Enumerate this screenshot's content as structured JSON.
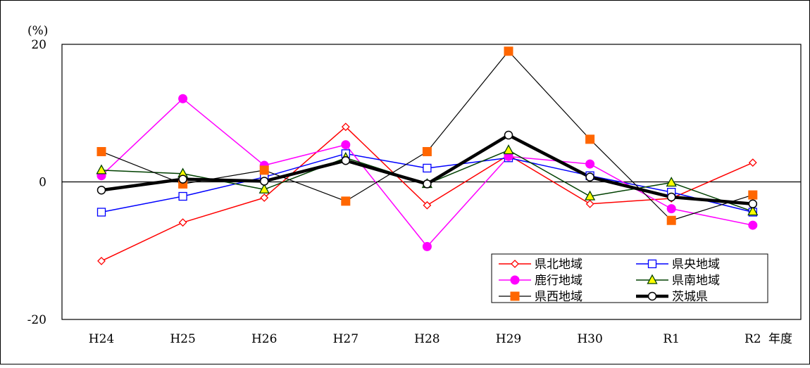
{
  "chart_data": {
    "type": "line",
    "title": "",
    "ylabel": "(%)",
    "xlabel": "年度",
    "categories": [
      "H24",
      "H25",
      "H26",
      "H27",
      "H28",
      "H29",
      "H30",
      "R1",
      "R2"
    ],
    "ylim": [
      -20,
      20
    ],
    "yticks": [
      20,
      0,
      -20
    ],
    "ytick_labels": [
      "20",
      "0",
      "-20"
    ],
    "grid": false,
    "zero_line": true,
    "legend_position": "bottom-right",
    "series": [
      {
        "name": "県北地域",
        "color": "#ff0000",
        "marker": "diamond-open",
        "line_width": 1.5,
        "values": [
          -11.5,
          -5.9,
          -2.3,
          8.0,
          -3.4,
          3.9,
          -3.2,
          -2.4,
          2.8
        ]
      },
      {
        "name": "県央地域",
        "color": "#0000ff",
        "marker": "square-open",
        "line_width": 1.5,
        "values": [
          -4.4,
          -2.1,
          0.7,
          4.1,
          2.0,
          3.5,
          0.9,
          -1.5,
          -4.4
        ]
      },
      {
        "name": "鹿行地域",
        "color": "#ff00ff",
        "marker": "circle-filled",
        "line_width": 1.5,
        "values": [
          0.9,
          12.1,
          2.4,
          5.4,
          -9.4,
          3.7,
          2.6,
          -3.9,
          -6.3
        ]
      },
      {
        "name": "県南地域",
        "color": "#004000",
        "marker": "triangle-yellow",
        "line_width": 1.5,
        "values": [
          1.7,
          1.2,
          -1.1,
          3.5,
          -0.3,
          4.6,
          -2.1,
          -0.1,
          -4.3
        ]
      },
      {
        "name": "県西地域",
        "color": "#000000",
        "marker": "square-orange",
        "line_width": 1.2,
        "values": [
          4.4,
          -0.3,
          1.7,
          -2.8,
          4.4,
          19.0,
          6.2,
          -5.6,
          -1.9
        ]
      },
      {
        "name": "茨城県",
        "color": "#000000",
        "marker": "circle-open",
        "line_width": 4.5,
        "values": [
          -1.2,
          0.4,
          0.1,
          3.1,
          -0.3,
          6.8,
          0.7,
          -2.2,
          -3.2
        ]
      }
    ]
  }
}
